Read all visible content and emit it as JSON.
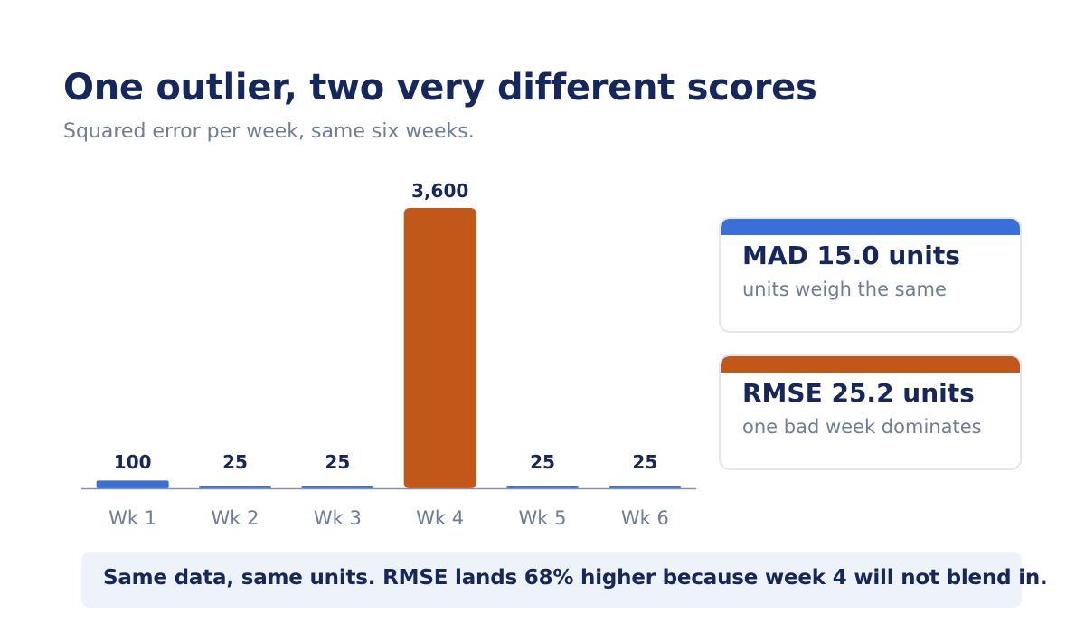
{
  "header": {
    "title": "One outlier, two very different scores",
    "subtitle": "Squared error per week, same six weeks."
  },
  "colors": {
    "normal_bar": "#3a6fd8",
    "outlier_bar": "#c2571a",
    "axis": "#8a93a6",
    "label": "#6f7d96",
    "text": "#16275b"
  },
  "chart_data": {
    "type": "bar",
    "title": "One outlier, two very different scores",
    "subtitle": "Squared error per week, same six weeks.",
    "categories": [
      "Wk 1",
      "Wk 2",
      "Wk 3",
      "Wk 4",
      "Wk 5",
      "Wk 6"
    ],
    "values": [
      100,
      25,
      25,
      3600,
      25,
      25
    ],
    "value_labels": [
      "100",
      "25",
      "25",
      "3,600",
      "25",
      "25"
    ],
    "highlight": "Wk 4",
    "xlabel": "",
    "ylabel": "",
    "ylim": [
      0,
      3600
    ],
    "grid": false,
    "legend": "none"
  },
  "cards": [
    {
      "heading": "MAD 15.0 units",
      "note": "units weigh the same",
      "accent": "#3a6fd8"
    },
    {
      "heading": "RMSE 25.2 units",
      "note": "one bad week dominates",
      "accent": "#c2571a"
    }
  ],
  "callout": {
    "text": "Same data, same units. RMSE lands 68% higher because week 4 will not blend in."
  }
}
